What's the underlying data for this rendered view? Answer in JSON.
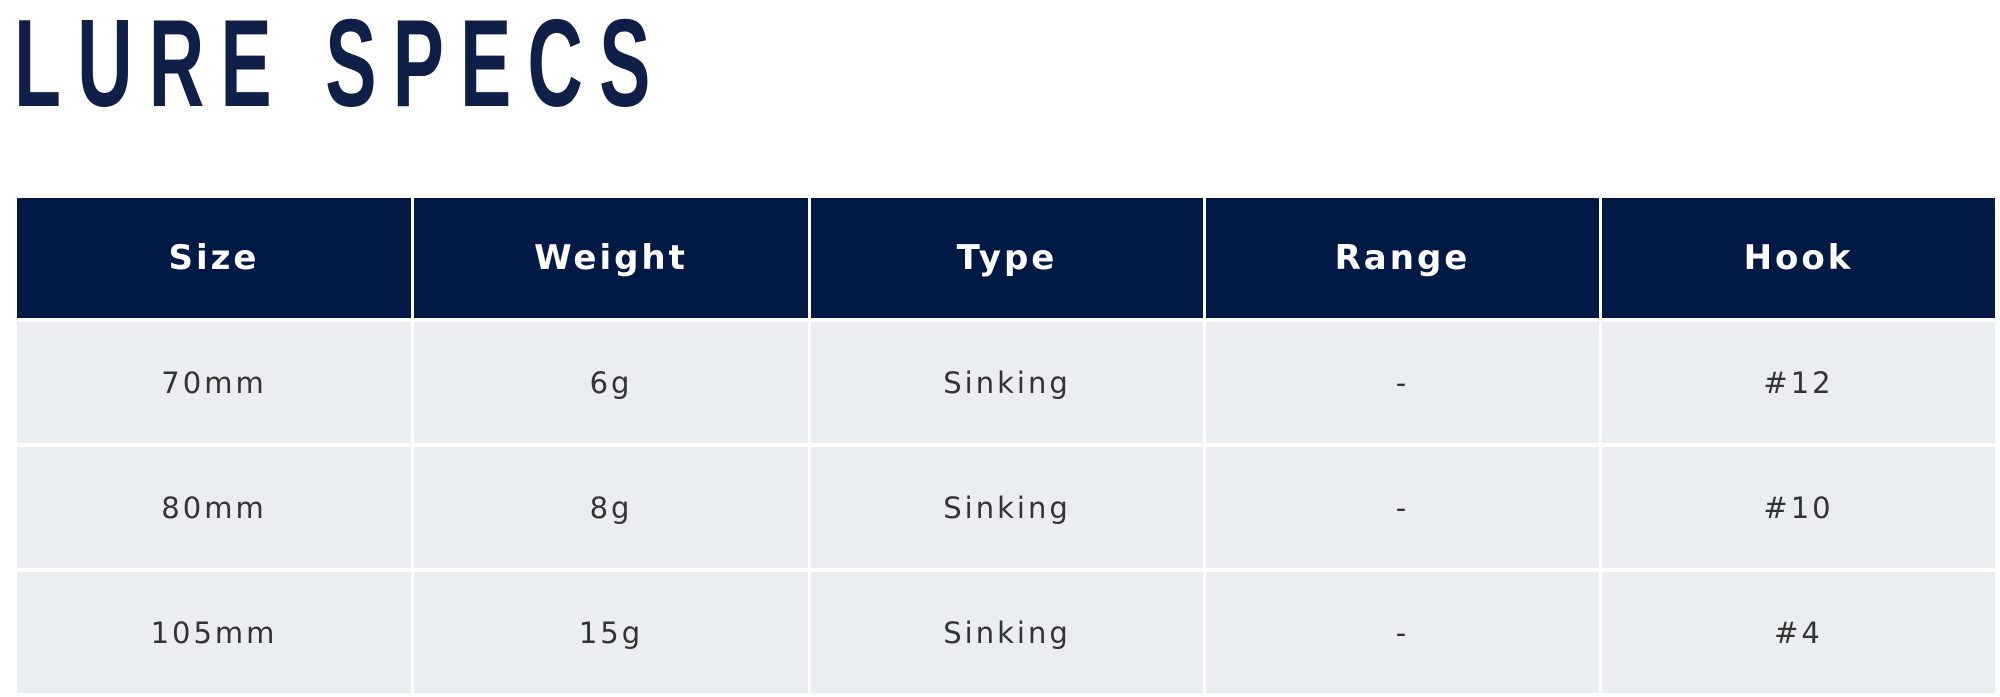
{
  "title": "LURE SPECS",
  "colors": {
    "header_bg": "#001a45",
    "title": "#0f1f48",
    "row_bg": "#ebeef1"
  },
  "table": {
    "headers": [
      "Size",
      "Weight",
      "Type",
      "Range",
      "Hook"
    ],
    "rows": [
      [
        "70mm",
        "6g",
        "Sinking",
        "-",
        "#12"
      ],
      [
        "80mm",
        "8g",
        "Sinking",
        "-",
        "#10"
      ],
      [
        "105mm",
        "15g",
        "Sinking",
        "-",
        "#4"
      ]
    ]
  }
}
